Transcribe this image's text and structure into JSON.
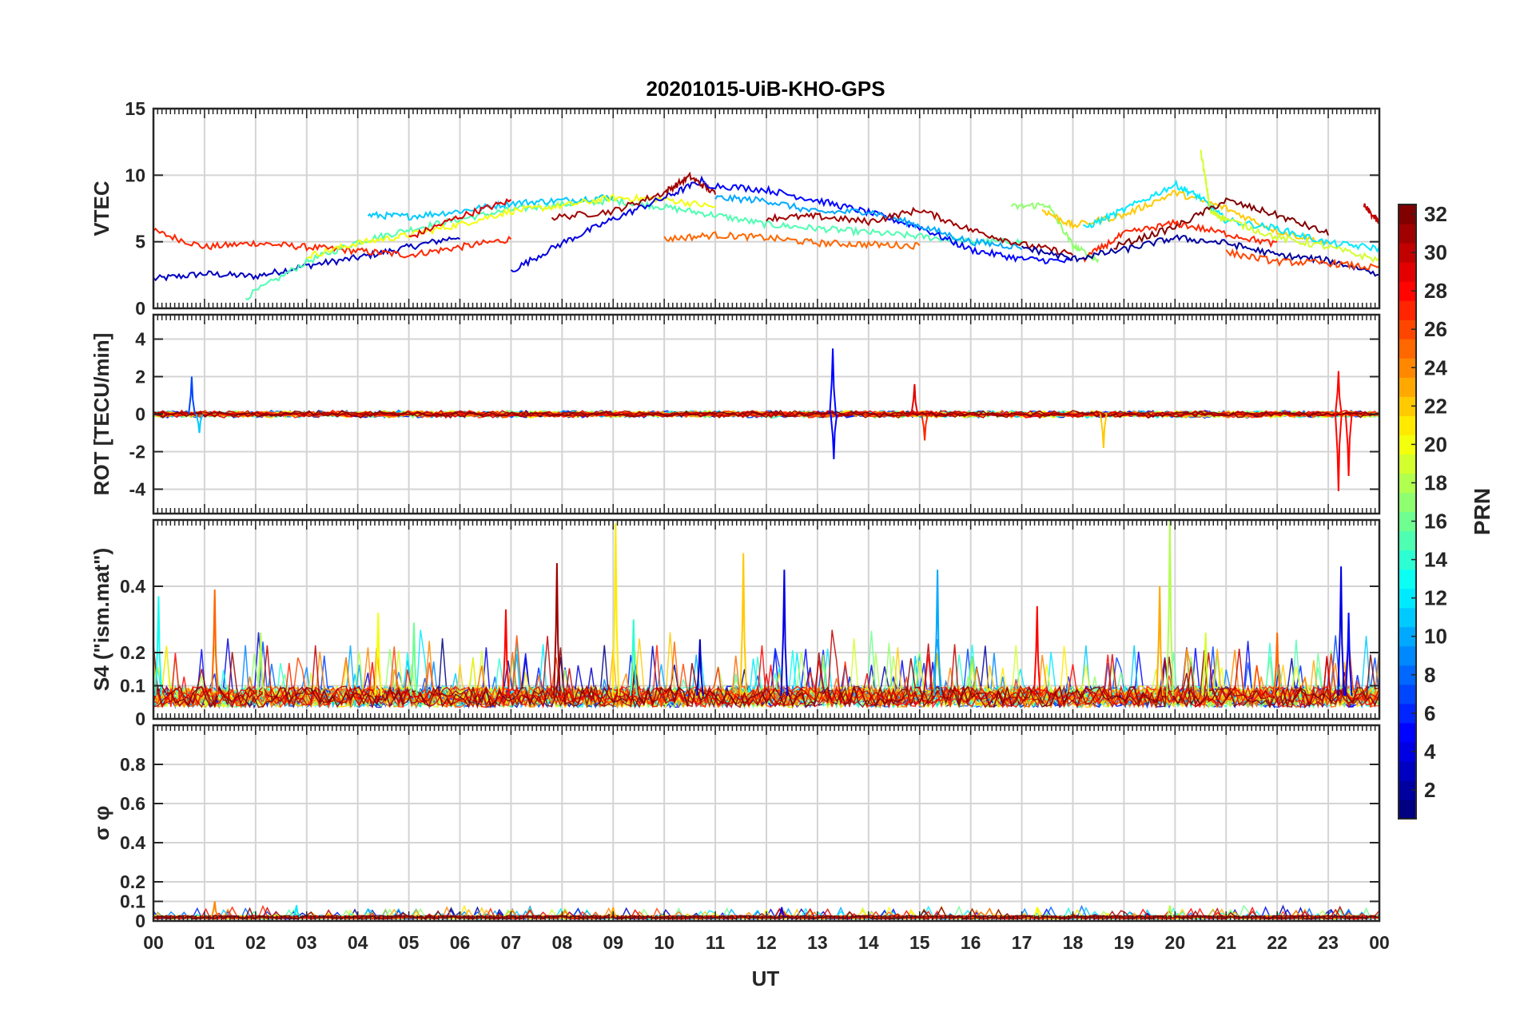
{
  "chart_data": {
    "type": "line",
    "title": "20201015-UiB-KHO-GPS",
    "xlabel": "UT",
    "x_tick_labels": [
      "00",
      "01",
      "02",
      "03",
      "04",
      "05",
      "06",
      "07",
      "08",
      "09",
      "10",
      "11",
      "12",
      "13",
      "14",
      "15",
      "16",
      "17",
      "18",
      "19",
      "20",
      "21",
      "22",
      "23",
      "00"
    ],
    "xlim": [
      0,
      24
    ],
    "grid": true,
    "panels": [
      {
        "id": "vtec",
        "ylabel": "VTEC",
        "ylim": [
          0,
          15
        ],
        "yticks": [
          0,
          5,
          10,
          15
        ],
        "ytick_labels": [
          "0",
          "5",
          "10",
          "15"
        ],
        "series": [
          {
            "prn": 3,
            "x": [
              0,
              1,
              2,
              3,
              4,
              5,
              6
            ],
            "y": [
              2.2,
              2.6,
              2.4,
              3.2,
              3.8,
              4.6,
              5.4
            ]
          },
          {
            "prn": 27,
            "x": [
              0,
              1,
              2,
              3,
              4,
              5,
              6,
              7
            ],
            "y": [
              5.8,
              4.6,
              4.9,
              4.6,
              4.3,
              4.0,
              4.6,
              5.2
            ]
          },
          {
            "prn": 15,
            "x": [
              1.8,
              3,
              4,
              5,
              6,
              7,
              8,
              9,
              10,
              11,
              12,
              13,
              14,
              15,
              16,
              17
            ],
            "y": [
              0.8,
              3.5,
              5,
              5.9,
              6.7,
              7.4,
              7.8,
              8.1,
              7.6,
              7,
              6.3,
              6,
              5.7,
              5.4,
              5,
              5
            ]
          },
          {
            "prn": 11,
            "x": [
              4.2,
              5,
              6,
              7,
              8,
              9
            ],
            "y": [
              7.0,
              6.9,
              7.3,
              7.9,
              8.1,
              8.4
            ]
          },
          {
            "prn": 20,
            "x": [
              3,
              4,
              5,
              6,
              7,
              8,
              9,
              10,
              11
            ],
            "y": [
              3.9,
              4.9,
              5.5,
              6.3,
              7.3,
              7.7,
              8.3,
              8.2,
              7.6
            ]
          },
          {
            "prn": 29,
            "x": [
              5,
              6,
              7
            ],
            "y": [
              5.3,
              6.9,
              8.1
            ]
          },
          {
            "prn": 4,
            "x": [
              7,
              8,
              9,
              10,
              10.8
            ],
            "y": [
              2.8,
              4.9,
              6.7,
              8.3,
              9.7
            ]
          },
          {
            "prn": 31,
            "x": [
              7.8,
              9,
              10,
              10.5,
              11
            ],
            "y": [
              6.8,
              7.3,
              8.7,
              9.9,
              8.6
            ]
          },
          {
            "prn": 5,
            "x": [
              10.8,
              12,
              13,
              14,
              15,
              16,
              17,
              18
            ],
            "y": [
              9.3,
              8.9,
              8.1,
              7.2,
              6.1,
              4.4,
              3.7,
              3.5
            ]
          },
          {
            "prn": 10,
            "x": [
              11,
              12,
              13,
              14,
              15,
              16,
              17
            ],
            "y": [
              8.3,
              8.1,
              7.2,
              7.3,
              6.2,
              5.0,
              4.6
            ]
          },
          {
            "prn": 25,
            "x": [
              10,
              11,
              12,
              13,
              14,
              15
            ],
            "y": [
              5.2,
              5.5,
              5.3,
              4.9,
              4.8,
              4.7
            ]
          },
          {
            "prn": 31,
            "x": [
              12,
              13,
              14,
              15,
              16,
              17,
              18
            ],
            "y": [
              6.8,
              6.9,
              6.5,
              7.4,
              5.9,
              4.8,
              4.1
            ]
          },
          {
            "prn": 17,
            "x": [
              16.8,
              17.5,
              18,
              18.5
            ],
            "y": [
              7.6,
              7.8,
              4.7,
              3.6
            ]
          },
          {
            "prn": 22,
            "x": [
              17.4,
              18,
              19,
              20,
              21,
              22,
              23
            ],
            "y": [
              7.4,
              6.2,
              7.0,
              8.7,
              7.5,
              5.8,
              4.9
            ]
          },
          {
            "prn": 12,
            "x": [
              18.2,
              19,
              20,
              20.5,
              21,
              22,
              23,
              24
            ],
            "y": [
              6.0,
              7.4,
              9.3,
              8.3,
              6.6,
              6.0,
              4.9,
              4.5
            ]
          },
          {
            "prn": 19,
            "x": [
              20.5,
              20.7,
              21,
              22,
              23,
              24
            ],
            "y": [
              11.9,
              7.2,
              6.7,
              5.3,
              4.6,
              3.6
            ]
          },
          {
            "prn": 32,
            "x": [
              18.8,
              20,
              21,
              22,
              23
            ],
            "y": [
              4.6,
              6.1,
              8.1,
              7.0,
              5.6
            ]
          },
          {
            "prn": 27,
            "x": [
              18.2,
              19,
              20,
              21,
              22
            ],
            "y": [
              3.7,
              5.6,
              6.4,
              5.6,
              4.8
            ]
          },
          {
            "prn": 2,
            "x": [
              17,
              18,
              19,
              20,
              21,
              22,
              23,
              24
            ],
            "y": [
              4.6,
              3.7,
              4.4,
              5.3,
              4.9,
              4.0,
              3.6,
              2.6
            ]
          },
          {
            "prn": 26,
            "x": [
              21,
              22,
              23,
              24
            ],
            "y": [
              4.2,
              3.5,
              3.4,
              3.0
            ]
          },
          {
            "prn": 30,
            "x": [
              23.7,
              24
            ],
            "y": [
              7.7,
              6.4
            ]
          }
        ]
      },
      {
        "id": "rot",
        "ylabel": "ROT [TECU/min]",
        "ylim": [
          -5.3,
          5.3
        ],
        "yticks": [
          -4,
          -2,
          0,
          2,
          4
        ],
        "ytick_labels": [
          "-4",
          "-2",
          "0",
          "2",
          "4"
        ],
        "noise_level": 0.15,
        "spikes": [
          {
            "x": 0.75,
            "y": 2.0,
            "prn": 7
          },
          {
            "x": 0.9,
            "y": -1.0,
            "prn": 11
          },
          {
            "x": 13.3,
            "y": 3.5,
            "prn": 5
          },
          {
            "x": 13.32,
            "y": -2.4,
            "prn": 5
          },
          {
            "x": 14.9,
            "y": 1.6,
            "prn": 29
          },
          {
            "x": 15.1,
            "y": -1.4,
            "prn": 27
          },
          {
            "x": 18.6,
            "y": -1.8,
            "prn": 22
          },
          {
            "x": 23.2,
            "y": 2.3,
            "prn": 28
          },
          {
            "x": 23.2,
            "y": -4.1,
            "prn": 28
          },
          {
            "x": 23.4,
            "y": -3.3,
            "prn": 28
          }
        ]
      },
      {
        "id": "s4",
        "ylabel": "S4 (\"ism.mat\")",
        "ylim": [
          0,
          0.6
        ],
        "yticks": [
          0,
          0.1,
          0.2,
          0.4
        ],
        "ytick_labels": [
          "0",
          "0.1",
          "0.2",
          "0.4"
        ],
        "baseline": 0.07,
        "spikes": [
          {
            "x": 0.1,
            "y": 0.37,
            "prn": 13
          },
          {
            "x": 1.2,
            "y": 0.39,
            "prn": 25
          },
          {
            "x": 2.1,
            "y": 0.26,
            "prn": 18
          },
          {
            "x": 4.4,
            "y": 0.32,
            "prn": 20
          },
          {
            "x": 5.1,
            "y": 0.29,
            "prn": 16
          },
          {
            "x": 6.9,
            "y": 0.33,
            "prn": 28
          },
          {
            "x": 7.9,
            "y": 0.47,
            "prn": 31
          },
          {
            "x": 9.05,
            "y": 0.59,
            "prn": 21
          },
          {
            "x": 9.4,
            "y": 0.3,
            "prn": 14
          },
          {
            "x": 11.55,
            "y": 0.5,
            "prn": 22
          },
          {
            "x": 12.35,
            "y": 0.45,
            "prn": 4
          },
          {
            "x": 10.7,
            "y": 0.24,
            "prn": 3
          },
          {
            "x": 15.35,
            "y": 0.45,
            "prn": 10
          },
          {
            "x": 17.3,
            "y": 0.34,
            "prn": 28
          },
          {
            "x": 19.9,
            "y": 0.6,
            "prn": 18
          },
          {
            "x": 19.7,
            "y": 0.4,
            "prn": 23
          },
          {
            "x": 20.6,
            "y": 0.26,
            "prn": 19
          },
          {
            "x": 22.0,
            "y": 0.26,
            "prn": 25
          },
          {
            "x": 23.25,
            "y": 0.46,
            "prn": 4
          },
          {
            "x": 23.4,
            "y": 0.32,
            "prn": 5
          }
        ]
      },
      {
        "id": "sigma_phi",
        "ylabel": "σ φ",
        "ylim": [
          0,
          1
        ],
        "yticks": [
          0,
          0.1,
          0.2,
          0.4,
          0.6,
          0.8
        ],
        "ytick_labels": [
          "0",
          "0.1",
          "0.2",
          "0.4",
          "0.6",
          "0.8"
        ],
        "baseline": 0.02,
        "spikes": [
          {
            "x": 1.2,
            "y": 0.1,
            "prn": 24
          },
          {
            "x": 2.8,
            "y": 0.08,
            "prn": 12
          },
          {
            "x": 9.0,
            "y": 0.07,
            "prn": 23
          },
          {
            "x": 12.3,
            "y": 0.07,
            "prn": 4
          },
          {
            "x": 17.3,
            "y": 0.07,
            "prn": 20
          },
          {
            "x": 19.9,
            "y": 0.08,
            "prn": 18
          }
        ]
      }
    ],
    "colorbar": {
      "label": "PRN",
      "min": 1,
      "max": 32,
      "colormap": "jet",
      "ticks": [
        2,
        4,
        6,
        8,
        10,
        12,
        14,
        16,
        18,
        20,
        22,
        24,
        26,
        28,
        30,
        32
      ],
      "tick_labels": [
        "2",
        "4",
        "6",
        "8",
        "10",
        "12",
        "14",
        "16",
        "18",
        "20",
        "22",
        "24",
        "26",
        "28",
        "30",
        "32"
      ]
    }
  }
}
